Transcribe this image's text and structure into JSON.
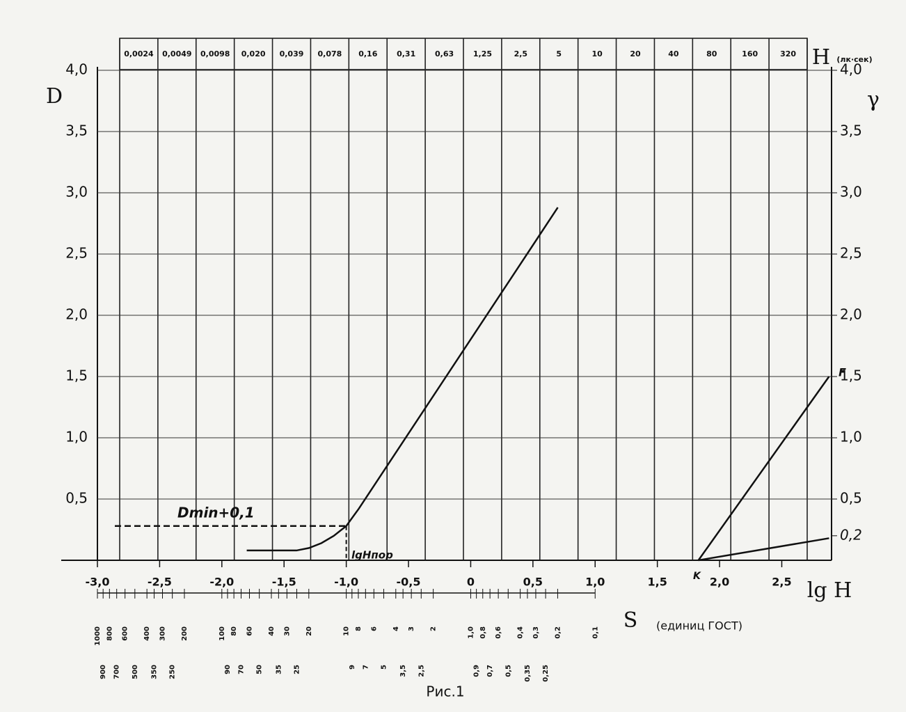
{
  "chart_data": {
    "type": "line",
    "title": "Рис.1",
    "y_label": "D",
    "y2_label": "γ",
    "x_label": "lg H",
    "top_label": "H",
    "top_unit": "(лк·сек)",
    "s_label": "S",
    "s_unit": "(единиц ГОСТ)",
    "xlim": [
      -3.0,
      2.9
    ],
    "xticks": [
      {
        "value": -3.0,
        "label": "-3,0"
      },
      {
        "value": -2.5,
        "label": "-2,5"
      },
      {
        "value": -2.0,
        "label": "-2,0"
      },
      {
        "value": -1.5,
        "label": "-1,5"
      },
      {
        "value": -1.0,
        "label": "-1,0"
      },
      {
        "value": -0.5,
        "label": "-0,5"
      },
      0,
      {
        "value": 0.5,
        "label": "0,5"
      },
      {
        "value": 1.0,
        "label": "1,0"
      },
      {
        "value": 1.5,
        "label": "1,5"
      },
      {
        "value": 2.0,
        "label": "2,0"
      },
      {
        "value": 2.5,
        "label": "2,5"
      }
    ],
    "ylim": [
      0,
      4
    ],
    "yticks": [
      {
        "value": 0.5,
        "label": "0,5"
      },
      {
        "value": 1.0,
        "label": "1,0"
      },
      {
        "value": 1.5,
        "label": "1,5"
      },
      {
        "value": 2.0,
        "label": "2,0"
      },
      {
        "value": 2.5,
        "label": "2,5"
      },
      {
        "value": 3.0,
        "label": "3,0"
      },
      {
        "value": 3.5,
        "label": "3,5"
      },
      {
        "value": 4.0,
        "label": "4,0"
      }
    ],
    "y2lim": [
      0,
      4
    ],
    "y2ticks": [
      {
        "value": 0.2,
        "label": "0,2"
      },
      {
        "value": 0.5,
        "label": "0,5"
      },
      {
        "value": 1.0,
        "label": "1,0"
      },
      {
        "value": 1.5,
        "label": "1,5"
      },
      {
        "value": 2.0,
        "label": "2,0"
      },
      {
        "value": 2.5,
        "label": "2,5"
      },
      {
        "value": 3.0,
        "label": "3,0"
      },
      {
        "value": 3.5,
        "label": "3,5"
      },
      {
        "value": 4.0,
        "label": "4,0"
      }
    ],
    "top_categories": [
      "0,0024",
      "0,0049",
      "0,0098",
      "0,020",
      "0,039",
      "0,078",
      "0,16",
      "0,31",
      "0,63",
      "1,25",
      "2,5",
      "5",
      "10",
      "20",
      "40",
      "80",
      "160",
      "320"
    ],
    "s_ticks": [
      1000,
      800,
      600,
      400,
      300,
      200,
      100,
      80,
      60,
      40,
      30,
      20,
      10,
      8,
      6,
      4,
      3,
      2,
      {
        "value": 1.0,
        "label": "1,0"
      },
      {
        "value": 0.8,
        "label": "0,8"
      },
      {
        "value": 0.6,
        "label": "0,6"
      },
      {
        "value": 0.4,
        "label": "0,4"
      },
      {
        "value": 0.3,
        "label": "0,3"
      },
      {
        "value": 0.2,
        "label": "0,2"
      },
      {
        "value": 0.1,
        "label": "0,1"
      }
    ],
    "s_ticks_minor": [
      900,
      700,
      500,
      350,
      250,
      90,
      70,
      50,
      35,
      25,
      9,
      7,
      5,
      {
        "value": 3.5,
        "label": "3,5"
      },
      {
        "value": 2.5,
        "label": "2,5"
      },
      {
        "value": 0.9,
        "label": "0,9"
      },
      {
        "value": 0.7,
        "label": "0,7"
      },
      {
        "value": 0.5,
        "label": "0,5"
      },
      {
        "value": 0.35,
        "label": "0,35"
      },
      {
        "value": 0.25,
        "label": "0,25"
      }
    ],
    "series": [
      {
        "color": "#111111",
        "x": [
          -1.8,
          -1.4,
          -1.3,
          -1.2,
          -1.1,
          -1.0,
          -0.9,
          0.7
        ],
        "values": [
          0.08,
          0.08,
          0.1,
          0.14,
          0.2,
          0.28,
          0.42,
          2.88
        ]
      },
      {
        "color": "#111111",
        "axis": "y2",
        "x": [
          1.83,
          2.88
        ],
        "values": [
          0,
          1.5
        ]
      },
      {
        "color": "#111111",
        "axis": "y2",
        "x": [
          1.83,
          2.88
        ],
        "values": [
          0,
          0.18
        ]
      }
    ],
    "threshold": {
      "value": 0.28,
      "x": -1.0
    },
    "annotations": [
      "Dmin+0,1",
      "lgHпор",
      "K",
      "F"
    ],
    "grid": true
  }
}
